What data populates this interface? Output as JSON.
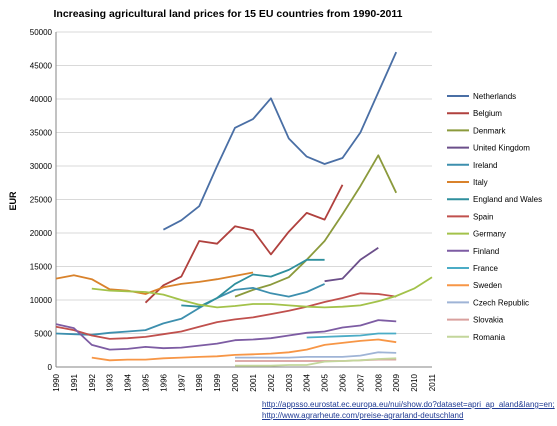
{
  "chart_data": {
    "type": "line",
    "title": "Increasing agricultural land prices for 15 EU countries from 1990-2011",
    "ylabel": "EUR",
    "xlabel": "",
    "ylim": [
      0,
      50000
    ],
    "yticks": [
      0,
      5000,
      10000,
      15000,
      20000,
      25000,
      30000,
      35000,
      40000,
      45000,
      50000
    ],
    "x": [
      "1990",
      "1991",
      "1992",
      "1993",
      "1994",
      "1995",
      "1996",
      "1997",
      "1998",
      "1999",
      "2000",
      "2001",
      "2002",
      "2003",
      "2004",
      "2005",
      "2006",
      "2007",
      "2008",
      "2009",
      "2010",
      "2011"
    ],
    "grid": true,
    "legend": "right",
    "series": [
      {
        "name": "Netherlands",
        "color": "#4a6fa5",
        "values": [
          null,
          null,
          null,
          null,
          null,
          null,
          20500,
          21900,
          24000,
          30000,
          35700,
          37000,
          40100,
          34100,
          31400,
          30300,
          31200,
          35000,
          41000,
          47000,
          null,
          null
        ]
      },
      {
        "name": "Belgium",
        "color": "#b0413e",
        "values": [
          null,
          null,
          null,
          null,
          null,
          9600,
          12200,
          13500,
          18800,
          18400,
          21000,
          20400,
          16800,
          20200,
          23000,
          22000,
          27200,
          null,
          null,
          null,
          null,
          null
        ]
      },
      {
        "name": "Denmark",
        "color": "#8b9a3c",
        "values": [
          null,
          null,
          null,
          null,
          null,
          null,
          null,
          null,
          null,
          null,
          10500,
          11500,
          12300,
          13400,
          16000,
          18800,
          22800,
          27000,
          31600,
          26000,
          null,
          null
        ]
      },
      {
        "name": "United Kingdom",
        "color": "#6b4f8a",
        "values": [
          null,
          null,
          null,
          null,
          null,
          null,
          null,
          null,
          null,
          null,
          null,
          null,
          null,
          null,
          null,
          12800,
          13200,
          16000,
          17800,
          null,
          null,
          null
        ]
      },
      {
        "name": "Ireland",
        "color": "#3d8fae",
        "values": [
          5000,
          4900,
          4800,
          5100,
          5300,
          5500,
          6500,
          7200,
          8800,
          10300,
          11500,
          11800,
          11000,
          10500,
          11200,
          12400,
          null,
          null,
          null,
          null,
          null,
          null
        ]
      },
      {
        "name": "Italy",
        "color": "#d9822b",
        "values": [
          13200,
          13700,
          13100,
          11600,
          11400,
          10900,
          11900,
          12400,
          12700,
          13100,
          13600,
          14100,
          null,
          null,
          null,
          null,
          null,
          null,
          null,
          null,
          null,
          null
        ]
      },
      {
        "name": "England and Wales",
        "color": "#2f8f9d",
        "values": [
          null,
          null,
          null,
          null,
          null,
          null,
          null,
          9200,
          9000,
          10300,
          12400,
          13800,
          13500,
          14500,
          16000,
          16000,
          null,
          null,
          null,
          null,
          null,
          null
        ]
      },
      {
        "name": "Spain",
        "color": "#c0504d",
        "values": [
          6000,
          5500,
          4700,
          4200,
          4300,
          4500,
          4900,
          5300,
          6000,
          6700,
          7100,
          7400,
          7900,
          8400,
          9000,
          9700,
          10300,
          11000,
          10900,
          10500,
          null,
          null
        ]
      },
      {
        "name": "Germany",
        "color": "#a3c24a",
        "values": [
          null,
          null,
          11700,
          11400,
          11300,
          11200,
          10800,
          10000,
          9300,
          8900,
          9100,
          9400,
          9400,
          9200,
          9000,
          8900,
          9000,
          9200,
          9800,
          10600,
          11700,
          13400
        ]
      },
      {
        "name": "Finland",
        "color": "#7d5ca3",
        "values": [
          6400,
          5800,
          3300,
          2600,
          2700,
          3000,
          2800,
          2900,
          3200,
          3500,
          4000,
          4100,
          4300,
          4700,
          5100,
          5300,
          5900,
          6200,
          7000,
          6800,
          null,
          null
        ]
      },
      {
        "name": "France",
        "color": "#4bacc6",
        "values": [
          null,
          null,
          null,
          null,
          null,
          null,
          null,
          null,
          null,
          null,
          null,
          null,
          null,
          null,
          4400,
          4500,
          4600,
          4700,
          5000,
          5000,
          null,
          null
        ]
      },
      {
        "name": "Sweden",
        "color": "#f79646",
        "values": [
          null,
          null,
          1400,
          1000,
          1100,
          1100,
          1300,
          1400,
          1500,
          1600,
          1800,
          1900,
          2000,
          2200,
          2600,
          3300,
          3600,
          3900,
          4100,
          3700,
          null,
          null
        ]
      },
      {
        "name": "Czech Republic",
        "color": "#9fb4d6",
        "values": [
          null,
          null,
          null,
          null,
          null,
          null,
          null,
          null,
          null,
          null,
          1400,
          1400,
          1400,
          1400,
          1500,
          1500,
          1500,
          1700,
          2200,
          2100,
          null,
          null
        ]
      },
      {
        "name": "Slovakia",
        "color": "#d9a09e",
        "values": [
          null,
          null,
          null,
          null,
          null,
          null,
          null,
          null,
          null,
          null,
          900,
          900,
          900,
          900,
          900,
          900,
          900,
          1000,
          1100,
          1100,
          null,
          null
        ]
      },
      {
        "name": "Romania",
        "color": "#c3d69b",
        "values": [
          null,
          null,
          null,
          null,
          null,
          null,
          null,
          null,
          null,
          null,
          200,
          200,
          200,
          300,
          300,
          800,
          900,
          1000,
          1200,
          1300,
          null,
          null
        ]
      }
    ]
  },
  "sources": [
    "http://appsso.eurostat.ec.europa.eu/nui/show.do?dataset=apri_ap_aland&lang=en;",
    "http://www.agrarheute.com/preise-agrarland-deutschland"
  ]
}
